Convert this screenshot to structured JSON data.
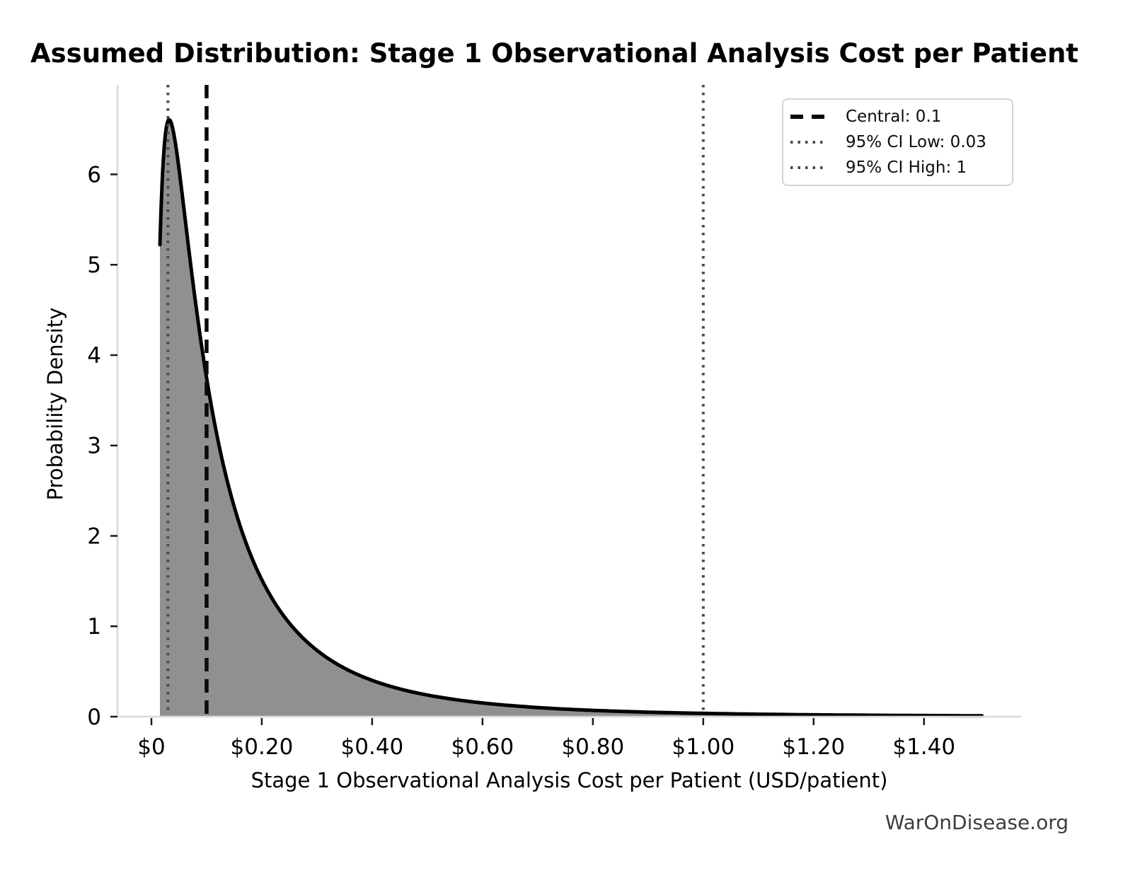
{
  "page": {
    "background": "#ffffff"
  },
  "watermark": {
    "text": "WarOnDisease.org",
    "color": "#3d3d3d"
  },
  "chart_data": {
    "type": "area",
    "title": "Assumed Distribution: Stage 1 Observational Analysis Cost per Patient",
    "xlabel": "Stage 1 Observational Analysis Cost per Patient (USD/patient)",
    "ylabel": "Probability Density",
    "xlim": [
      -0.0615,
      1.576
    ],
    "ylim": [
      0,
      6.99
    ],
    "grid": false,
    "x_ticks": [
      {
        "value": 0.0,
        "label": "$0"
      },
      {
        "value": 0.2,
        "label": "$0.20"
      },
      {
        "value": 0.4,
        "label": "$0.40"
      },
      {
        "value": 0.6,
        "label": "$0.60"
      },
      {
        "value": 0.8,
        "label": "$0.80"
      },
      {
        "value": 1.0,
        "label": "$1.00"
      },
      {
        "value": 1.2,
        "label": "$1.20"
      },
      {
        "value": 1.4,
        "label": "$1.40"
      }
    ],
    "y_ticks": [
      {
        "value": 0,
        "label": "0"
      },
      {
        "value": 1,
        "label": "1"
      },
      {
        "value": 2,
        "label": "2"
      },
      {
        "value": 3,
        "label": "3"
      },
      {
        "value": 4,
        "label": "4"
      },
      {
        "value": 5,
        "label": "5"
      },
      {
        "value": 6,
        "label": "6"
      }
    ],
    "distribution": {
      "family": "lognormal",
      "central": 0.1,
      "ci95_low": 0.03,
      "ci95_high": 1,
      "mu_ln": -2.302585,
      "sigma_ln": 1.065,
      "curve_x_start": 0.0155,
      "curve_x_end": 1.505,
      "peak": {
        "x": 0.032,
        "density": 6.6
      },
      "line_color": "#000000",
      "fill_color": "#909090"
    },
    "curve_samples": {
      "x": [
        0.0155,
        0.02,
        0.025,
        0.03,
        0.032,
        0.04,
        0.05,
        0.06,
        0.08,
        0.1,
        0.12,
        0.15,
        0.2,
        0.25,
        0.3,
        0.4,
        0.5,
        0.6,
        0.8,
        1.0,
        1.2,
        1.5
      ],
      "density": [
        5.22,
        5.98,
        6.42,
        6.59,
        6.6,
        6.47,
        6.06,
        5.57,
        4.58,
        3.75,
        3.08,
        2.32,
        1.51,
        1.03,
        0.73,
        0.4,
        0.24,
        0.15,
        0.07,
        0.036,
        0.021,
        0.01
      ]
    },
    "vlines": [
      {
        "label": "Central: 0.1",
        "x": 0.1,
        "style": "dashed",
        "color": "#0a0a0a",
        "width": 5.5
      },
      {
        "label": "95% CI Low: 0.03",
        "x": 0.03,
        "style": "dotted",
        "color": "#4a4a4a",
        "width": 4
      },
      {
        "label": "95% CI High: 1",
        "x": 1.0,
        "style": "dotted",
        "color": "#4a4a4a",
        "width": 4
      }
    ],
    "legend": {
      "position": "upper right",
      "entries": [
        {
          "label": "Central: 0.1",
          "style": "dashed",
          "color": "#0a0a0a"
        },
        {
          "label": "95% CI Low: 0.03",
          "style": "dotted",
          "color": "#4a4a4a"
        },
        {
          "label": "95% CI High: 1",
          "style": "dotted",
          "color": "#4a4a4a"
        }
      ]
    },
    "axis": {
      "spine_color": "#d9d9d9",
      "tick_color": "#1a1a1a",
      "tick_label_color": "#000000"
    }
  }
}
